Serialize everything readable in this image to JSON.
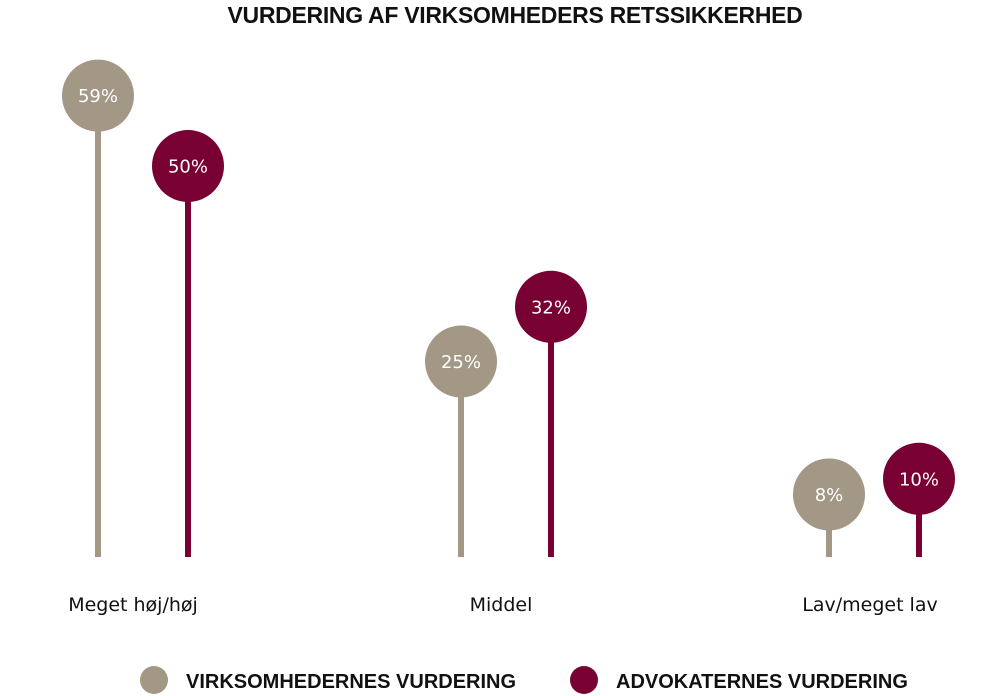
{
  "chart_data": {
    "type": "lollipop",
    "title": "VURDERING AF VIRKSOMHEDERS RETSSIKKERHED",
    "categories": [
      "Meget høj/høj",
      "Middel",
      "Lav/meget lav"
    ],
    "series": [
      {
        "name": "VIRKSOMHEDERNES VURDERING",
        "values": [
          59,
          25,
          8
        ],
        "labels": [
          "59%",
          "25%",
          "8%"
        ],
        "color": "#a39785"
      },
      {
        "name": "ADVOKATERNES VURDERING",
        "values": [
          50,
          32,
          10
        ],
        "labels": [
          "50%",
          "32%",
          "10%"
        ],
        "color": "#780032"
      }
    ],
    "unit": "%",
    "ylim": [
      0,
      65
    ],
    "grid": false,
    "legend": "bottom-center"
  }
}
